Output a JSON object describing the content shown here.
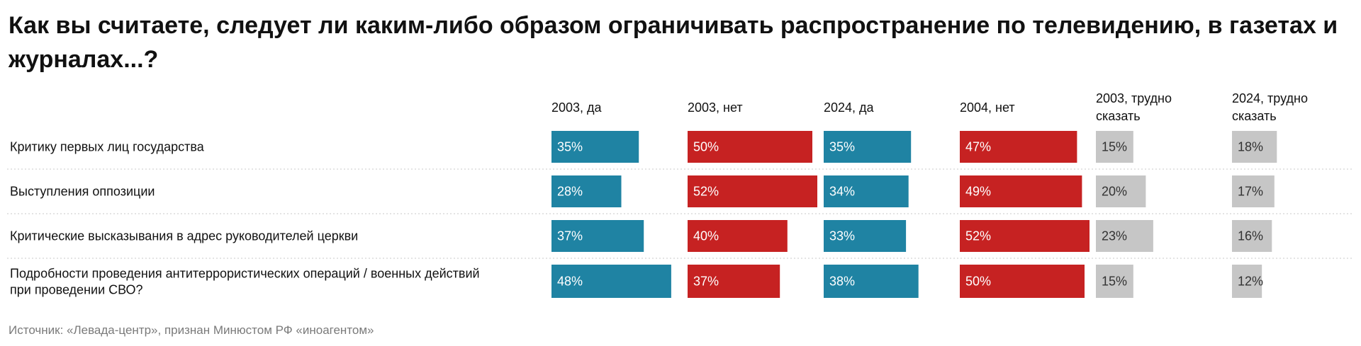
{
  "title": "Как вы считаете, следует ли каким-либо образом ограничивать распространение по телевидению, в газетах и журналах...?",
  "source": "Источник: «Левада-центр», признан Минюстом РФ «иноагентом»",
  "colors": {
    "yes": "#1f83a3",
    "no": "#c62222",
    "hard": "#c6c6c6",
    "label_on_dark": "#ffffff",
    "label_on_light": "#333333"
  },
  "chart_data": {
    "type": "table",
    "title": "Как вы считаете, следует ли каким-либо образом ограничивать распространение по телевидению, в газетах и журналах...?",
    "columns": [
      {
        "name": "2003, да",
        "lines": [
          "2003, да"
        ],
        "color": "yes"
      },
      {
        "name": "2003, нет",
        "lines": [
          "2003, нет"
        ],
        "color": "no"
      },
      {
        "name": "2024, да",
        "lines": [
          "2024, да"
        ],
        "color": "yes"
      },
      {
        "name": "2004, нет",
        "lines": [
          "2004, нет"
        ],
        "color": "no"
      },
      {
        "name": "2003, трудно сказать",
        "lines": [
          "2003, трудно",
          "сказать"
        ],
        "color": "hard"
      },
      {
        "name": "2024, трудно сказать",
        "lines": [
          "2024, трудно",
          "сказать"
        ],
        "color": "hard"
      }
    ],
    "rows": [
      {
        "label": [
          "Критику первых лиц государства"
        ],
        "values": [
          35,
          50,
          35,
          47,
          15,
          18
        ]
      },
      {
        "label": [
          "Выступления оппозиции"
        ],
        "values": [
          28,
          52,
          34,
          49,
          20,
          17
        ]
      },
      {
        "label": [
          "Критические высказывания в адрес руководителей церкви"
        ],
        "values": [
          37,
          40,
          33,
          52,
          23,
          16
        ]
      },
      {
        "label": [
          "Подробности проведения антитеррористических операций / военных действий",
          "при проведении СВО?"
        ],
        "values": [
          48,
          37,
          38,
          50,
          15,
          12
        ]
      }
    ],
    "value_suffix": "%",
    "scale_max": 52,
    "grid": false,
    "legend": "none"
  }
}
